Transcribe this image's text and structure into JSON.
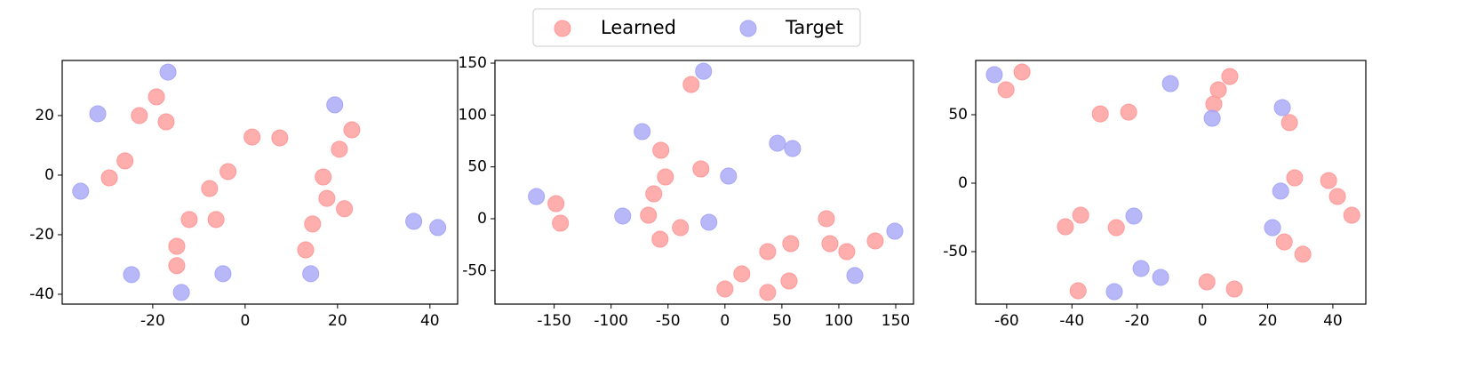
{
  "chart_data": [
    {
      "type": "scatter",
      "xlim": [
        -39.6,
        46
      ],
      "ylim": [
        -43.3,
        38.5
      ],
      "xticks": [
        -20,
        0,
        20,
        40
      ],
      "yticks": [
        -40,
        -20,
        0,
        20
      ],
      "series": [
        {
          "name": "Learned",
          "color": "#ff9a9a",
          "x": [
            -19.2,
            -22.9,
            -17.1,
            -26.0,
            -29.4,
            1.5,
            7.5,
            23.1,
            20.4,
            16.9,
            17.7,
            21.5,
            -3.7,
            -7.7,
            -12.1,
            -6.3,
            14.6,
            -14.8,
            13.1,
            -14.8
          ],
          "y": [
            26.3,
            20.0,
            17.9,
            4.8,
            -0.9,
            12.8,
            12.5,
            15.2,
            8.7,
            -0.6,
            -7.8,
            -11.3,
            1.2,
            -4.5,
            -14.9,
            -14.9,
            -16.4,
            -23.9,
            -25.1,
            -30.4
          ]
        },
        {
          "name": "Target",
          "color": "#a6a6f8",
          "x": [
            -16.7,
            -31.9,
            19.4,
            -35.6,
            -24.6,
            -4.8,
            14.2,
            -13.8,
            36.5,
            41.7
          ],
          "y": [
            34.6,
            20.6,
            23.6,
            -5.4,
            -33.4,
            -33.1,
            -33.1,
            -39.4,
            -15.5,
            -17.6
          ]
        }
      ]
    },
    {
      "type": "scatter",
      "xlim": [
        -202,
        165.6
      ],
      "ylim": [
        -82.3,
        152.6
      ],
      "xticks": [
        -150,
        -100,
        -50,
        0,
        50,
        100,
        150
      ],
      "yticks": [
        -50,
        0,
        50,
        100,
        150
      ],
      "series": [
        {
          "color": "#ff9a9a",
          "x": [
            -29.7,
            -56.3,
            -52.3,
            -21.1,
            -62.5,
            -67.2,
            -148.4,
            -144.5,
            -57.0,
            -39.1,
            89.1,
            92.2,
            57.8,
            107.0,
            132.0,
            37.5,
            14.8,
            0,
            37.5,
            56.3
          ],
          "y": [
            129.4,
            66.0,
            40.3,
            48.0,
            24.0,
            3.4,
            14.6,
            -4.3,
            -19.7,
            -8.6,
            0,
            -24.0,
            -24.0,
            -31.7,
            -21.4,
            -31.7,
            -53.1,
            -67.7,
            -71.1,
            -60.0
          ]
        },
        {
          "color": "#a6a6f8",
          "x": [
            -18.8,
            -72.7,
            46.1,
            59.4,
            3.1,
            -165.6,
            -89.8,
            -14.1,
            149.2,
            114.1
          ],
          "y": [
            142.2,
            84.0,
            72.8,
            67.7,
            41.1,
            21.4,
            2.6,
            -3.4,
            -12.0,
            -54.8
          ]
        }
      ]
    },
    {
      "type": "scatter",
      "xlim": [
        -69.5,
        50.1
      ],
      "ylim": [
        -88.3,
        89.6
      ],
      "xticks": [
        -60,
        -40,
        -20,
        0,
        20,
        40
      ],
      "yticks": [
        -50,
        0,
        50
      ],
      "series": [
        {
          "color": "#ff9a9a",
          "x": [
            -60.2,
            -55.3,
            -31.3,
            -22.6,
            8.4,
            4.9,
            3.5,
            26.7,
            28.3,
            38.7,
            41.4,
            45.8,
            25.1,
            30.8,
            -42.0,
            -37.3,
            -26.4,
            -38.1,
            1.4,
            9.8
          ],
          "y": [
            68.2,
            81.2,
            50.6,
            51.9,
            77.9,
            68.2,
            57.8,
            44.2,
            3.9,
            1.9,
            -9.7,
            -23.4,
            -42.9,
            -51.9,
            -31.8,
            -23.4,
            -32.5,
            -78.6,
            -72.1,
            -77.3
          ]
        },
        {
          "color": "#a6a6f8",
          "x": [
            -63.8,
            -9.8,
            3.0,
            24.5,
            24.0,
            21.5,
            -21.0,
            -18.8,
            -12.8,
            -27.0
          ],
          "y": [
            79.2,
            72.7,
            47.4,
            55.2,
            -5.8,
            -32.5,
            -24.0,
            -62.3,
            -68.8,
            -79.2
          ]
        }
      ]
    }
  ]
}
